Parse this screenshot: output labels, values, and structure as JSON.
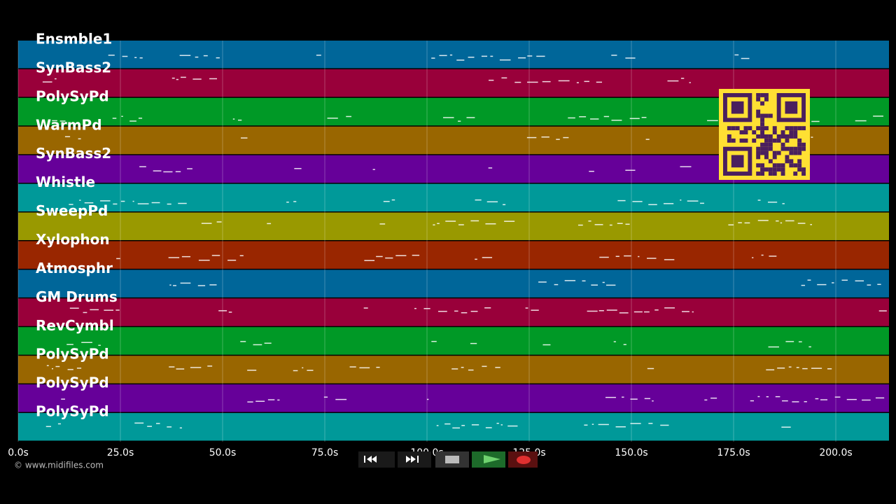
{
  "tracks": [
    {
      "name": "Ensmble1",
      "color": "#006699"
    },
    {
      "name": "SynBass2",
      "color": "#99003a"
    },
    {
      "name": "PolySyPd",
      "color": "#009926"
    },
    {
      "name": "WarmPd",
      "color": "#996600"
    },
    {
      "name": "SynBass2",
      "color": "#660099"
    },
    {
      "name": "Whistle",
      "color": "#009999"
    },
    {
      "name": "SweepPd",
      "color": "#999900"
    },
    {
      "name": "Xylophon",
      "color": "#992600"
    },
    {
      "name": "Atmosphr",
      "color": "#006699"
    },
    {
      "name": "GM Drums",
      "color": "#99003a"
    },
    {
      "name": "RevCymbl",
      "color": "#009926"
    },
    {
      "name": "PolySyPd",
      "color": "#996600"
    },
    {
      "name": "PolySyPd",
      "color": "#660099"
    },
    {
      "name": "PolySyPd",
      "color": "#009999"
    }
  ],
  "timeline": {
    "ticks": [
      {
        "value": 0,
        "label": "0.0s"
      },
      {
        "value": 25,
        "label": "25.0s"
      },
      {
        "value": 50,
        "label": "50.0s"
      },
      {
        "value": 75,
        "label": "75.0s"
      },
      {
        "value": 100,
        "label": "100.0s"
      },
      {
        "value": 125,
        "label": "125.0s"
      },
      {
        "value": 150,
        "label": "150.0s"
      },
      {
        "value": 175,
        "label": "175.0s"
      },
      {
        "value": 200,
        "label": "200.0s"
      }
    ]
  },
  "footer": {
    "copyright": "© www.midifiles.com"
  }
}
